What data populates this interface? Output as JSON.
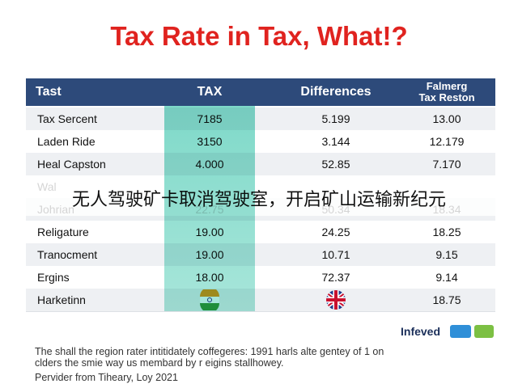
{
  "title": "Tax Rate in Tax, What!?",
  "table": {
    "headers": [
      "Tast",
      "TAX",
      "Differences",
      "Falmerg\nTax Reston"
    ],
    "rows": [
      {
        "label": "Tax Sercent",
        "tax": "7185",
        "diff": "5.199",
        "reston": "13.00"
      },
      {
        "label": "Laden Ride",
        "tax": "3150",
        "diff": "3.144",
        "reston": "12.179"
      },
      {
        "label": "Heal Capston",
        "tax": "4.000",
        "diff": "52.85",
        "reston": "7.170"
      },
      {
        "label": "Wal"
      },
      {
        "label": "Johrian",
        "tax": "22.75",
        "diff": "50.34",
        "reston": "18.34"
      },
      {
        "label": "Religature",
        "tax": "19.00",
        "diff": "24.25",
        "reston": "18.25"
      },
      {
        "label": "Tranocment",
        "tax": "19.00",
        "diff": "10.71",
        "reston": "9.15"
      },
      {
        "label": "Ergins",
        "tax": "18.00",
        "diff": "72.37",
        "reston": "9.14"
      },
      {
        "label": "Harketinn",
        "reston": "18.75"
      }
    ]
  },
  "banner": "无人驾驶矿卡取消驾驶室，开启矿山运输新纪元",
  "logo": "Infeved",
  "footer": [
    "The shall the region rater intitidately coffegeres: 1991 harls alte gentey of 1 on",
    "clders the smie way us membard by r eigins stallhowey.",
    "Pervider from Tiheary, Loy 2021"
  ]
}
